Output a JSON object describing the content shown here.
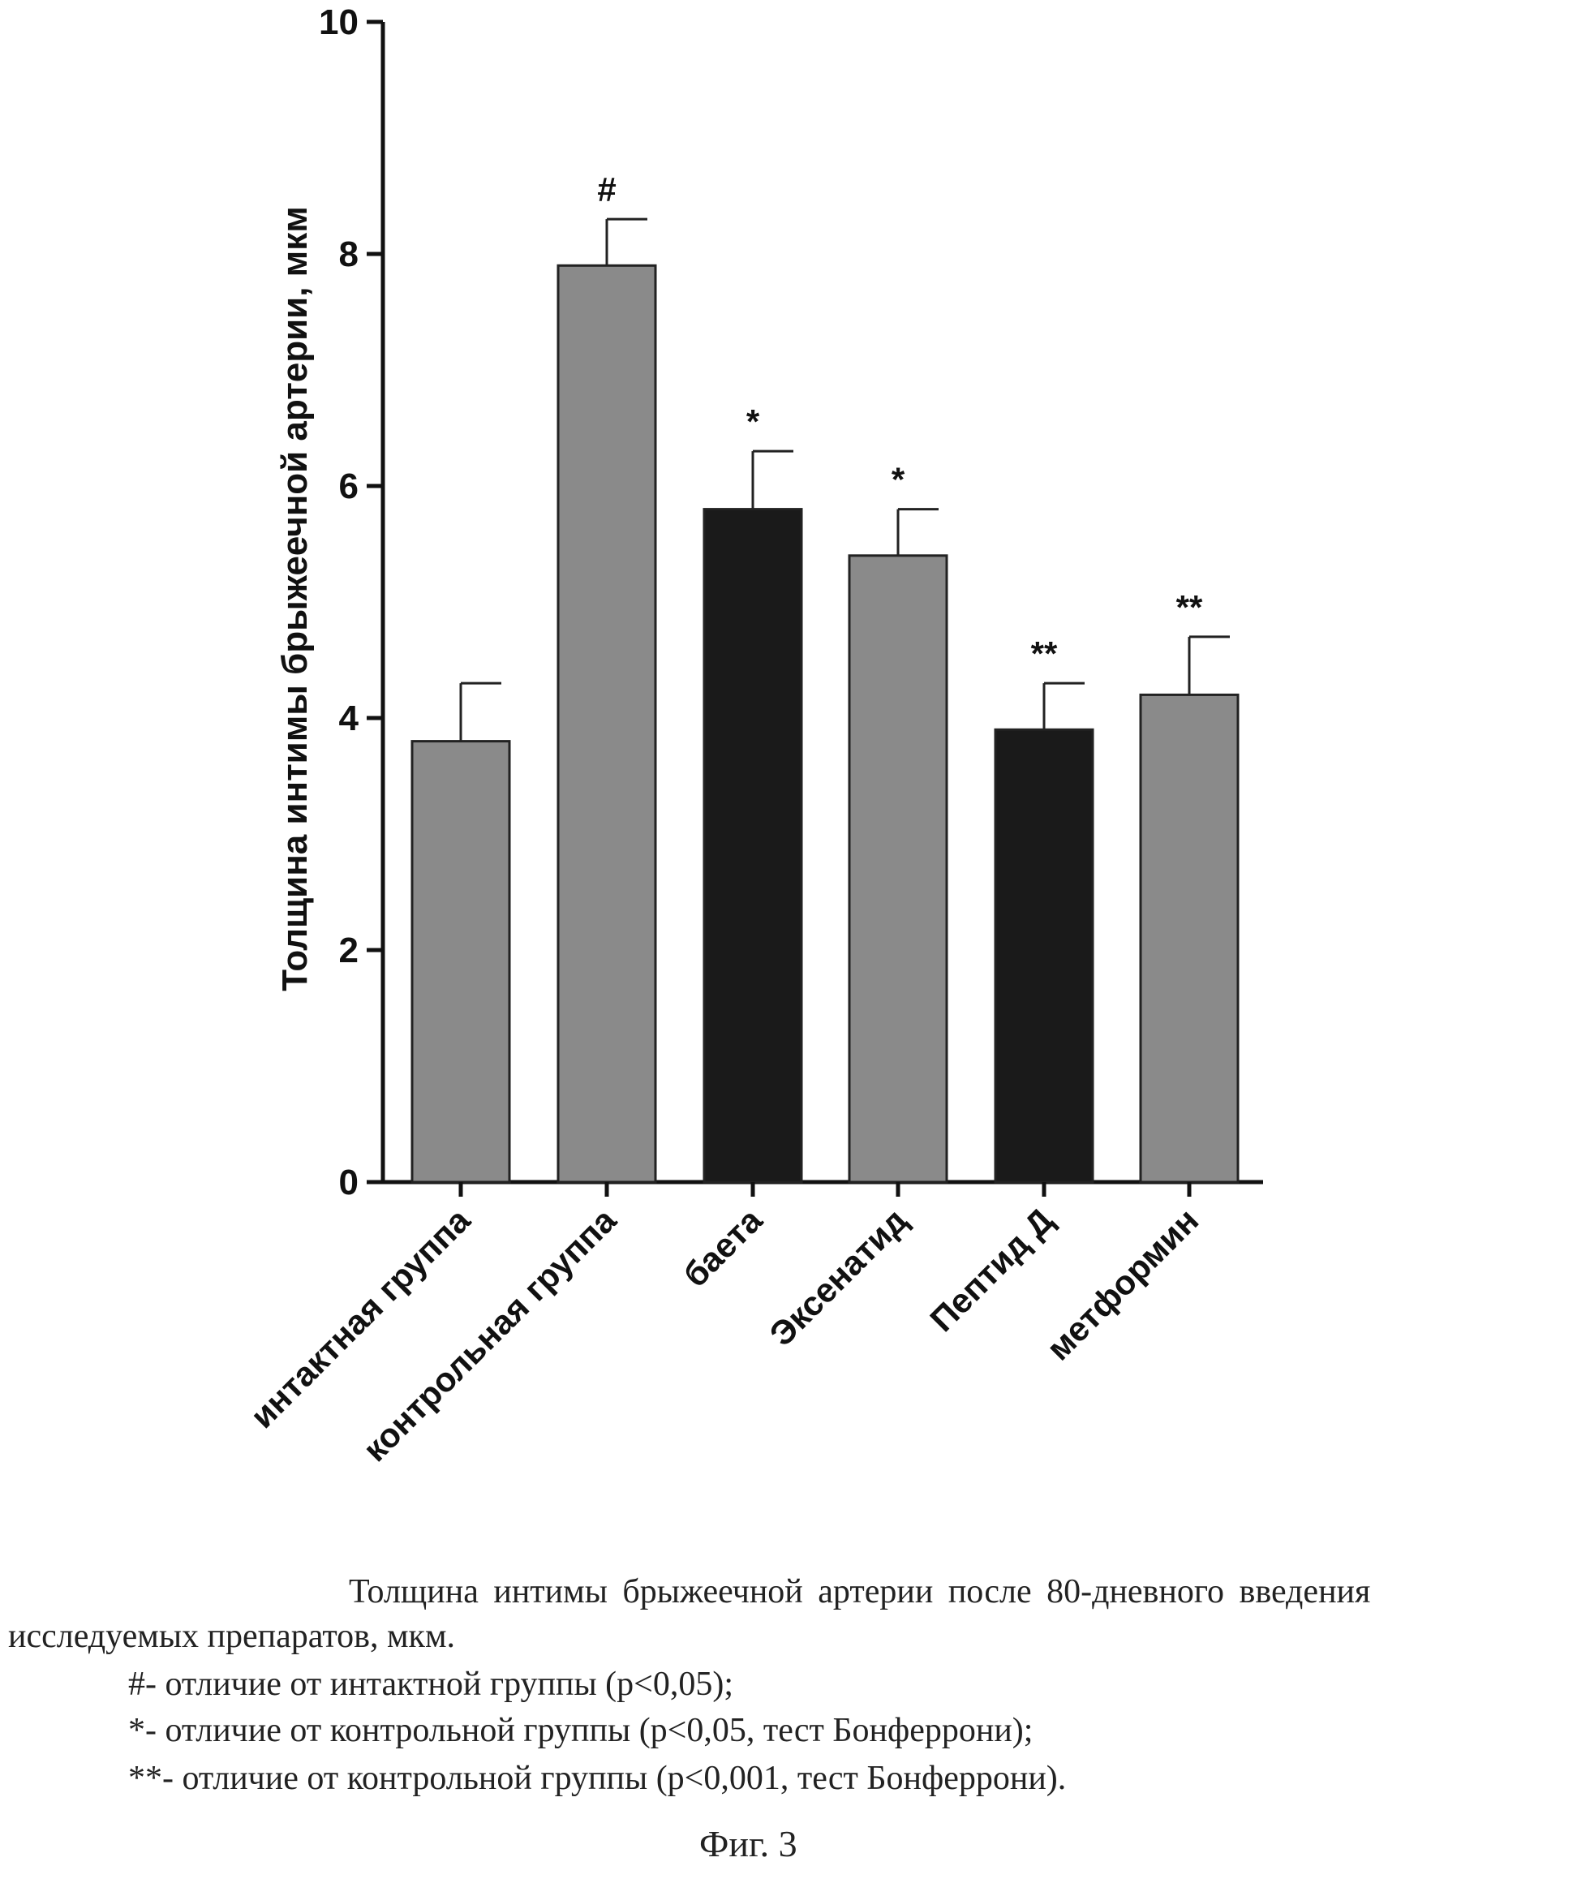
{
  "chart_data": {
    "type": "bar",
    "ylabel": "Толщина интимы брыжеечной артерии, мкм",
    "xlabel": "",
    "ylim": [
      0,
      10
    ],
    "yticks": [
      "0",
      "2",
      "4",
      "6",
      "8",
      "10"
    ],
    "categories": [
      "интактная группа",
      "контрольная группа",
      "баета",
      "Эксенатид",
      "Пептид Д",
      "метформин"
    ],
    "values": [
      3.8,
      7.9,
      5.8,
      5.4,
      3.9,
      4.2
    ],
    "error_upper": [
      4.3,
      8.3,
      6.3,
      5.8,
      4.3,
      4.7
    ],
    "annotations": [
      "",
      "#",
      "*",
      "*",
      "**",
      "**"
    ],
    "bar_colors": [
      "#8a8a8a",
      "#8a8a8a",
      "#1a1a1a",
      "#8a8a8a",
      "#1a1a1a",
      "#8a8a8a"
    ],
    "grid": false
  },
  "caption": {
    "line1": "Толщина интимы брыжеечной артерии после 80-дневного введения",
    "line2": "исследуемых препаратов, мкм.",
    "note1": "#- отличие от интактной группы (р<0,05);",
    "note2": "*- отличие от контрольной группы (р<0,05, тест Бонферрони);",
    "note3": "**- отличие от контрольной группы (р<0,001, тест Бонферрони).",
    "figure": "Фиг. 3"
  }
}
